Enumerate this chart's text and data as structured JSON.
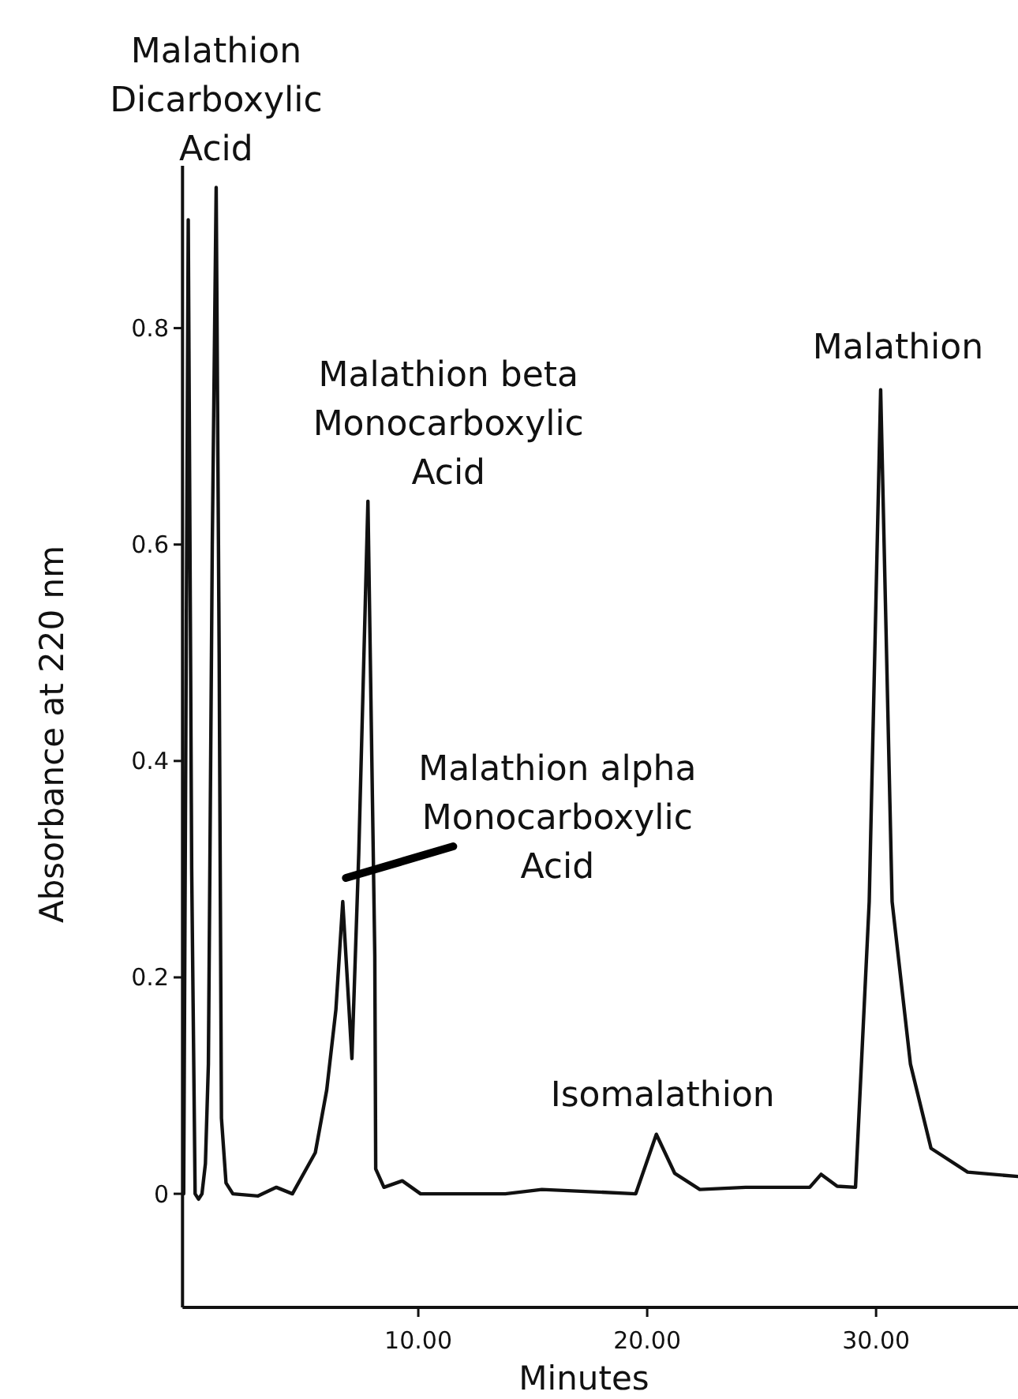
{
  "chart_data": {
    "type": "line",
    "xlabel": "Minutes",
    "ylabel": "Absorbance at 220 nm",
    "xlim": [
      -0.3,
      36.2
    ],
    "ylim": [
      -0.105,
      0.95
    ],
    "xticks": [
      {
        "value": 10,
        "label": "10.00"
      },
      {
        "value": 20,
        "label": "20.00"
      },
      {
        "value": 30,
        "label": "30.00"
      }
    ],
    "yticks": [
      0,
      0.2,
      0.4,
      0.6,
      0.8
    ],
    "grid": false,
    "marker": "none",
    "line_style": "solid",
    "series": [
      {
        "color": "#111111",
        "x": [
          -0.25,
          -0.05,
          0.1,
          0.25,
          0.4,
          0.55,
          0.7,
          0.83,
          1.0,
          1.17,
          1.3,
          1.4,
          1.6,
          1.9,
          3.0,
          3.8,
          4.5,
          5.5,
          6.0,
          6.4,
          6.7,
          7.1,
          7.4,
          7.8,
          8.1,
          8.14,
          8.5,
          9.3,
          10.1,
          13.8,
          15.4,
          19.5,
          20.4,
          21.2,
          22.3,
          24.3,
          27.1,
          27.6,
          28.3,
          29.1,
          29.7,
          30.2,
          30.7,
          31.5,
          32.4,
          34.0,
          36.2
        ],
        "values": [
          0.0,
          0.9,
          0.3,
          0.0,
          -0.005,
          0.0,
          0.028,
          0.12,
          0.6,
          0.93,
          0.5,
          0.07,
          0.01,
          0.0,
          -0.002,
          0.006,
          0.0,
          0.038,
          0.096,
          0.17,
          0.27,
          0.125,
          0.315,
          0.64,
          0.22,
          0.023,
          0.006,
          0.012,
          0.0,
          0.0,
          0.004,
          0.0,
          0.055,
          0.019,
          0.004,
          0.006,
          0.006,
          0.018,
          0.007,
          0.006,
          0.27,
          0.743,
          0.27,
          0.12,
          0.042,
          0.02,
          0.016
        ]
      }
    ],
    "annotations": [
      {
        "text": "Malathion\nDicarboxylic\nAcid",
        "x": 1.17,
        "y": 0.93
      },
      {
        "text": "Malathion beta\nMonocarboxylic\nAcid",
        "x": 7.8,
        "y": 0.64
      },
      {
        "text": "Malathion alpha\nMonocarboxylic\nAcid",
        "x": 6.7,
        "y": 0.27
      },
      {
        "text": "Isomalathion",
        "x": 20.4,
        "y": 0.055
      },
      {
        "text": "Malathion",
        "x": 30.2,
        "y": 0.743
      }
    ]
  }
}
